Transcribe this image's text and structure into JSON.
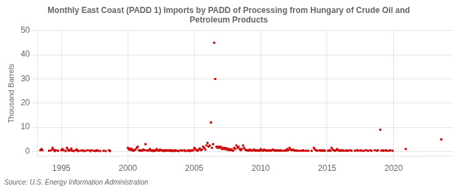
{
  "chart_data": {
    "type": "scatter",
    "title": "Monthly East Coast (PADD 1) Imports by PADD of Processing from Hungary of Crude Oil and\nPetroleum Products",
    "ylabel": "Thousand Barrels",
    "annotations": [
      "Source: U.S. Energy Information Administration"
    ],
    "color": "#cc0000",
    "marker": "square",
    "grid": true,
    "xlim": [
      1993.2,
      2024.5
    ],
    "xticks": [
      1995,
      2000,
      2005,
      2010,
      2015,
      2020
    ],
    "ylim": [
      -2,
      50
    ],
    "yticks": [
      0,
      10,
      20,
      30,
      40,
      50
    ],
    "x": [
      1993.42,
      1993.5,
      1993.58,
      1994.08,
      1994.25,
      1994.33,
      1994.42,
      1994.5,
      1994.58,
      1994.75,
      1995.0,
      1995.08,
      1995.17,
      1995.33,
      1995.42,
      1995.5,
      1995.58,
      1995.67,
      1995.75,
      1995.83,
      1995.92,
      1996.08,
      1996.17,
      1996.25,
      1996.42,
      1996.58,
      1996.67,
      1996.83,
      1997.0,
      1997.17,
      1997.25,
      1997.42,
      1997.58,
      1997.67,
      1997.75,
      1997.92,
      1998.17,
      1998.33,
      1998.58,
      1998.67,
      2000.0,
      2000.08,
      2000.17,
      2000.25,
      2000.33,
      2000.42,
      2000.5,
      2000.58,
      2000.67,
      2000.75,
      2000.83,
      2000.92,
      2001.0,
      2001.08,
      2001.17,
      2001.25,
      2001.33,
      2001.42,
      2001.5,
      2001.58,
      2001.67,
      2001.75,
      2001.83,
      2001.92,
      2002.0,
      2002.08,
      2002.17,
      2002.25,
      2002.33,
      2002.42,
      2002.5,
      2002.58,
      2002.67,
      2002.75,
      2002.83,
      2002.92,
      2003.0,
      2003.08,
      2003.17,
      2003.25,
      2003.33,
      2003.42,
      2003.5,
      2003.58,
      2003.67,
      2003.83,
      2004.0,
      2004.08,
      2004.25,
      2004.33,
      2004.5,
      2004.58,
      2004.67,
      2004.75,
      2004.83,
      2004.92,
      2005.0,
      2005.08,
      2005.17,
      2005.25,
      2005.33,
      2005.42,
      2005.5,
      2005.58,
      2005.67,
      2005.75,
      2005.83,
      2005.92,
      2006.0,
      2006.08,
      2006.17,
      2006.25,
      2006.33,
      2006.42,
      2006.5,
      2006.58,
      2006.67,
      2006.75,
      2006.83,
      2006.92,
      2007.0,
      2007.08,
      2007.17,
      2007.25,
      2007.33,
      2007.42,
      2007.5,
      2007.58,
      2007.67,
      2007.75,
      2007.83,
      2007.92,
      2008.0,
      2008.08,
      2008.17,
      2008.25,
      2008.33,
      2008.42,
      2008.5,
      2008.58,
      2008.67,
      2008.75,
      2008.83,
      2008.92,
      2009.0,
      2009.08,
      2009.17,
      2009.25,
      2009.33,
      2009.42,
      2009.5,
      2009.58,
      2009.67,
      2009.75,
      2009.83,
      2009.92,
      2010.0,
      2010.08,
      2010.17,
      2010.25,
      2010.33,
      2010.42,
      2010.5,
      2010.58,
      2010.67,
      2010.75,
      2010.83,
      2010.92,
      2011.0,
      2011.08,
      2011.17,
      2011.25,
      2011.33,
      2011.42,
      2011.5,
      2011.58,
      2011.75,
      2011.83,
      2011.92,
      2012.0,
      2012.08,
      2012.17,
      2012.25,
      2012.33,
      2012.42,
      2012.5,
      2012.58,
      2012.67,
      2012.75,
      2012.92,
      2013.08,
      2013.17,
      2013.25,
      2013.42,
      2013.58,
      2013.83,
      2014.0,
      2014.08,
      2014.17,
      2014.25,
      2014.42,
      2014.5,
      2014.58,
      2014.67,
      2014.75,
      2014.83,
      2015.08,
      2015.17,
      2015.25,
      2015.33,
      2015.42,
      2015.5,
      2015.58,
      2015.67,
      2015.75,
      2015.83,
      2015.92,
      2016.0,
      2016.08,
      2016.17,
      2016.25,
      2016.42,
      2016.5,
      2016.58,
      2016.75,
      2016.83,
      2017.08,
      2017.25,
      2017.33,
      2017.5,
      2017.58,
      2017.75,
      2017.92,
      2018.08,
      2018.25,
      2018.33,
      2018.58,
      2018.75,
      2018.83,
      2019.0,
      2019.08,
      2019.17,
      2019.25,
      2019.42,
      2019.5,
      2019.67,
      2019.75,
      2019.92,
      2020.92,
      2023.58
    ],
    "values": [
      0.5,
      1.0,
      0.5,
      0.3,
      0.5,
      1.5,
      0.8,
      0.2,
      0.5,
      0.3,
      0.5,
      1.0,
      0.5,
      0.2,
      1.5,
      0.8,
      0.3,
      0.5,
      1.2,
      0.3,
      0.2,
      0.5,
      0.8,
      0.2,
      0.3,
      0.5,
      0.2,
      0.3,
      0.5,
      0.2,
      0.5,
      0.3,
      0.2,
      0.5,
      0.3,
      0.2,
      0.3,
      0.2,
      0.5,
      0.2,
      1.5,
      0.8,
      1.2,
      0.5,
      1.0,
      0.3,
      0.5,
      0.8,
      1.5,
      2.0,
      0.5,
      0.3,
      0.5,
      0.3,
      0.8,
      0.5,
      3.0,
      0.5,
      0.3,
      0.5,
      1.0,
      0.3,
      0.5,
      0.2,
      0.5,
      0.3,
      1.0,
      0.5,
      0.3,
      0.8,
      0.5,
      0.3,
      0.5,
      0.2,
      0.5,
      0.3,
      0.5,
      0.3,
      0.5,
      0.2,
      0.5,
      0.3,
      0.2,
      0.5,
      0.3,
      0.2,
      0.5,
      0.3,
      0.5,
      0.2,
      0.3,
      0.5,
      0.2,
      0.5,
      0.3,
      0.5,
      1.5,
      1.0,
      0.5,
      0.3,
      0.8,
      1.2,
      0.5,
      0.8,
      2.0,
      1.5,
      0.8,
      2.5,
      3.5,
      2.0,
      2.5,
      12.0,
      1.5,
      3.0,
      45.0,
      30.0,
      2.0,
      1.5,
      2.0,
      1.5,
      2.0,
      1.0,
      1.5,
      1.0,
      1.5,
      0.8,
      1.2,
      0.5,
      1.0,
      0.5,
      0.8,
      0.3,
      1.5,
      1.0,
      2.5,
      1.5,
      2.0,
      1.0,
      0.5,
      1.0,
      2.5,
      1.5,
      0.8,
      0.5,
      0.5,
      0.3,
      0.8,
      0.5,
      0.3,
      0.5,
      0.8,
      0.3,
      0.5,
      0.3,
      0.5,
      0.3,
      1.0,
      0.5,
      0.3,
      0.8,
      0.5,
      0.3,
      0.5,
      0.3,
      0.5,
      0.3,
      0.5,
      0.8,
      0.5,
      0.3,
      0.5,
      0.3,
      0.5,
      0.3,
      0.5,
      0.3,
      0.3,
      0.5,
      0.3,
      1.0,
      0.5,
      1.5,
      0.8,
      0.5,
      0.8,
      0.5,
      0.3,
      0.5,
      0.3,
      0.3,
      0.3,
      0.5,
      0.3,
      0.3,
      0.3,
      0.3,
      1.5,
      0.8,
      0.5,
      0.3,
      0.5,
      0.3,
      0.5,
      0.3,
      0.5,
      0.3,
      0.3,
      0.5,
      0.3,
      1.5,
      0.8,
      0.5,
      0.3,
      0.5,
      1.0,
      0.5,
      0.3,
      0.5,
      0.3,
      0.5,
      0.3,
      0.3,
      0.5,
      0.3,
      0.5,
      0.3,
      0.3,
      0.5,
      0.3,
      0.5,
      0.3,
      0.3,
      0.5,
      0.3,
      0.5,
      0.3,
      0.5,
      0.3,
      0.5,
      9.0,
      0.3,
      0.5,
      0.3,
      0.5,
      0.3,
      0.3,
      0.5,
      0.3,
      1.0,
      5.0
    ]
  }
}
